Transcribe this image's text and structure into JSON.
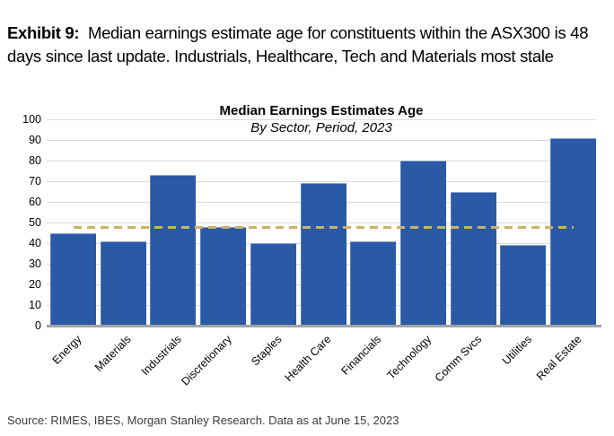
{
  "exhibit": {
    "label": "Exhibit 9:",
    "text": "Median earnings estimate age for constituents within the ASX300 is 48 days since last update. Industrials, Healthcare, Tech and Materials most stale"
  },
  "chart_data": {
    "type": "bar",
    "title": "Median Earnings Estimates Age",
    "subtitle": "By Sector, Period, 2023",
    "categories": [
      "Energy",
      "Materials",
      "Industrials",
      "Discretionary",
      "Staples",
      "Health Care",
      "Financials",
      "Technology",
      "Comm Svcs",
      "Utilities",
      "Real Estate"
    ],
    "values": [
      45,
      41,
      73,
      48,
      40,
      69,
      41,
      80,
      65,
      39,
      91
    ],
    "reference_line": {
      "value": 48,
      "style": "dashed",
      "color": "#CBB365"
    },
    "ylabel": "",
    "xlabel": "",
    "ylim": [
      0,
      100
    ],
    "ytick_step": 10,
    "grid": true,
    "legend": "none",
    "colors": {
      "bar": "#2A59A5",
      "gridline": "#DADADA",
      "axis": "#A3A3A3"
    }
  },
  "footer": {
    "source": "Source: RIMES, IBES, Morgan Stanley Research. Data as at June 15, 2023"
  }
}
